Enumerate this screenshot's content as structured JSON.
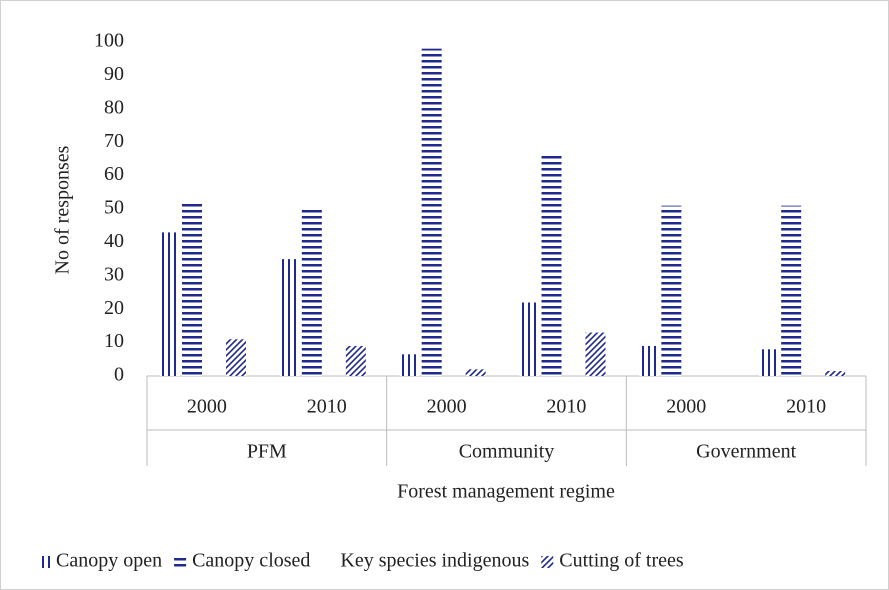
{
  "chart_data": {
    "type": "bar",
    "categories": [
      "2000",
      "2010",
      "2000",
      "2010",
      "2000",
      "2010"
    ],
    "groups": [
      "PFM",
      "Community",
      "Government"
    ],
    "xlabel": "Forest management  regime",
    "ylabel": "No of responses",
    "ylim": [
      0,
      100
    ],
    "yticks": [
      0,
      10,
      20,
      30,
      40,
      50,
      60,
      70,
      80,
      90,
      100
    ],
    "legend": "bottom",
    "series": [
      {
        "name": "Canopy open",
        "color": "#1f2a8c",
        "pattern": "vertical",
        "values": [
          43,
          35,
          6.5,
          22,
          9,
          8
        ]
      },
      {
        "name": "Canopy closed",
        "color": "#1f2a8c",
        "pattern": "horizontal",
        "values": [
          52,
          50,
          98,
          66,
          51,
          51
        ]
      },
      {
        "name": "Key species indigenous",
        "color": "#ffffff",
        "pattern": "none",
        "values": [
          null,
          null,
          null,
          null,
          null,
          null
        ]
      },
      {
        "name": "Cutting of trees",
        "color": "#1f2a8c",
        "pattern": "diagonal",
        "values": [
          11,
          9,
          2,
          13,
          0,
          1.5
        ]
      }
    ]
  }
}
